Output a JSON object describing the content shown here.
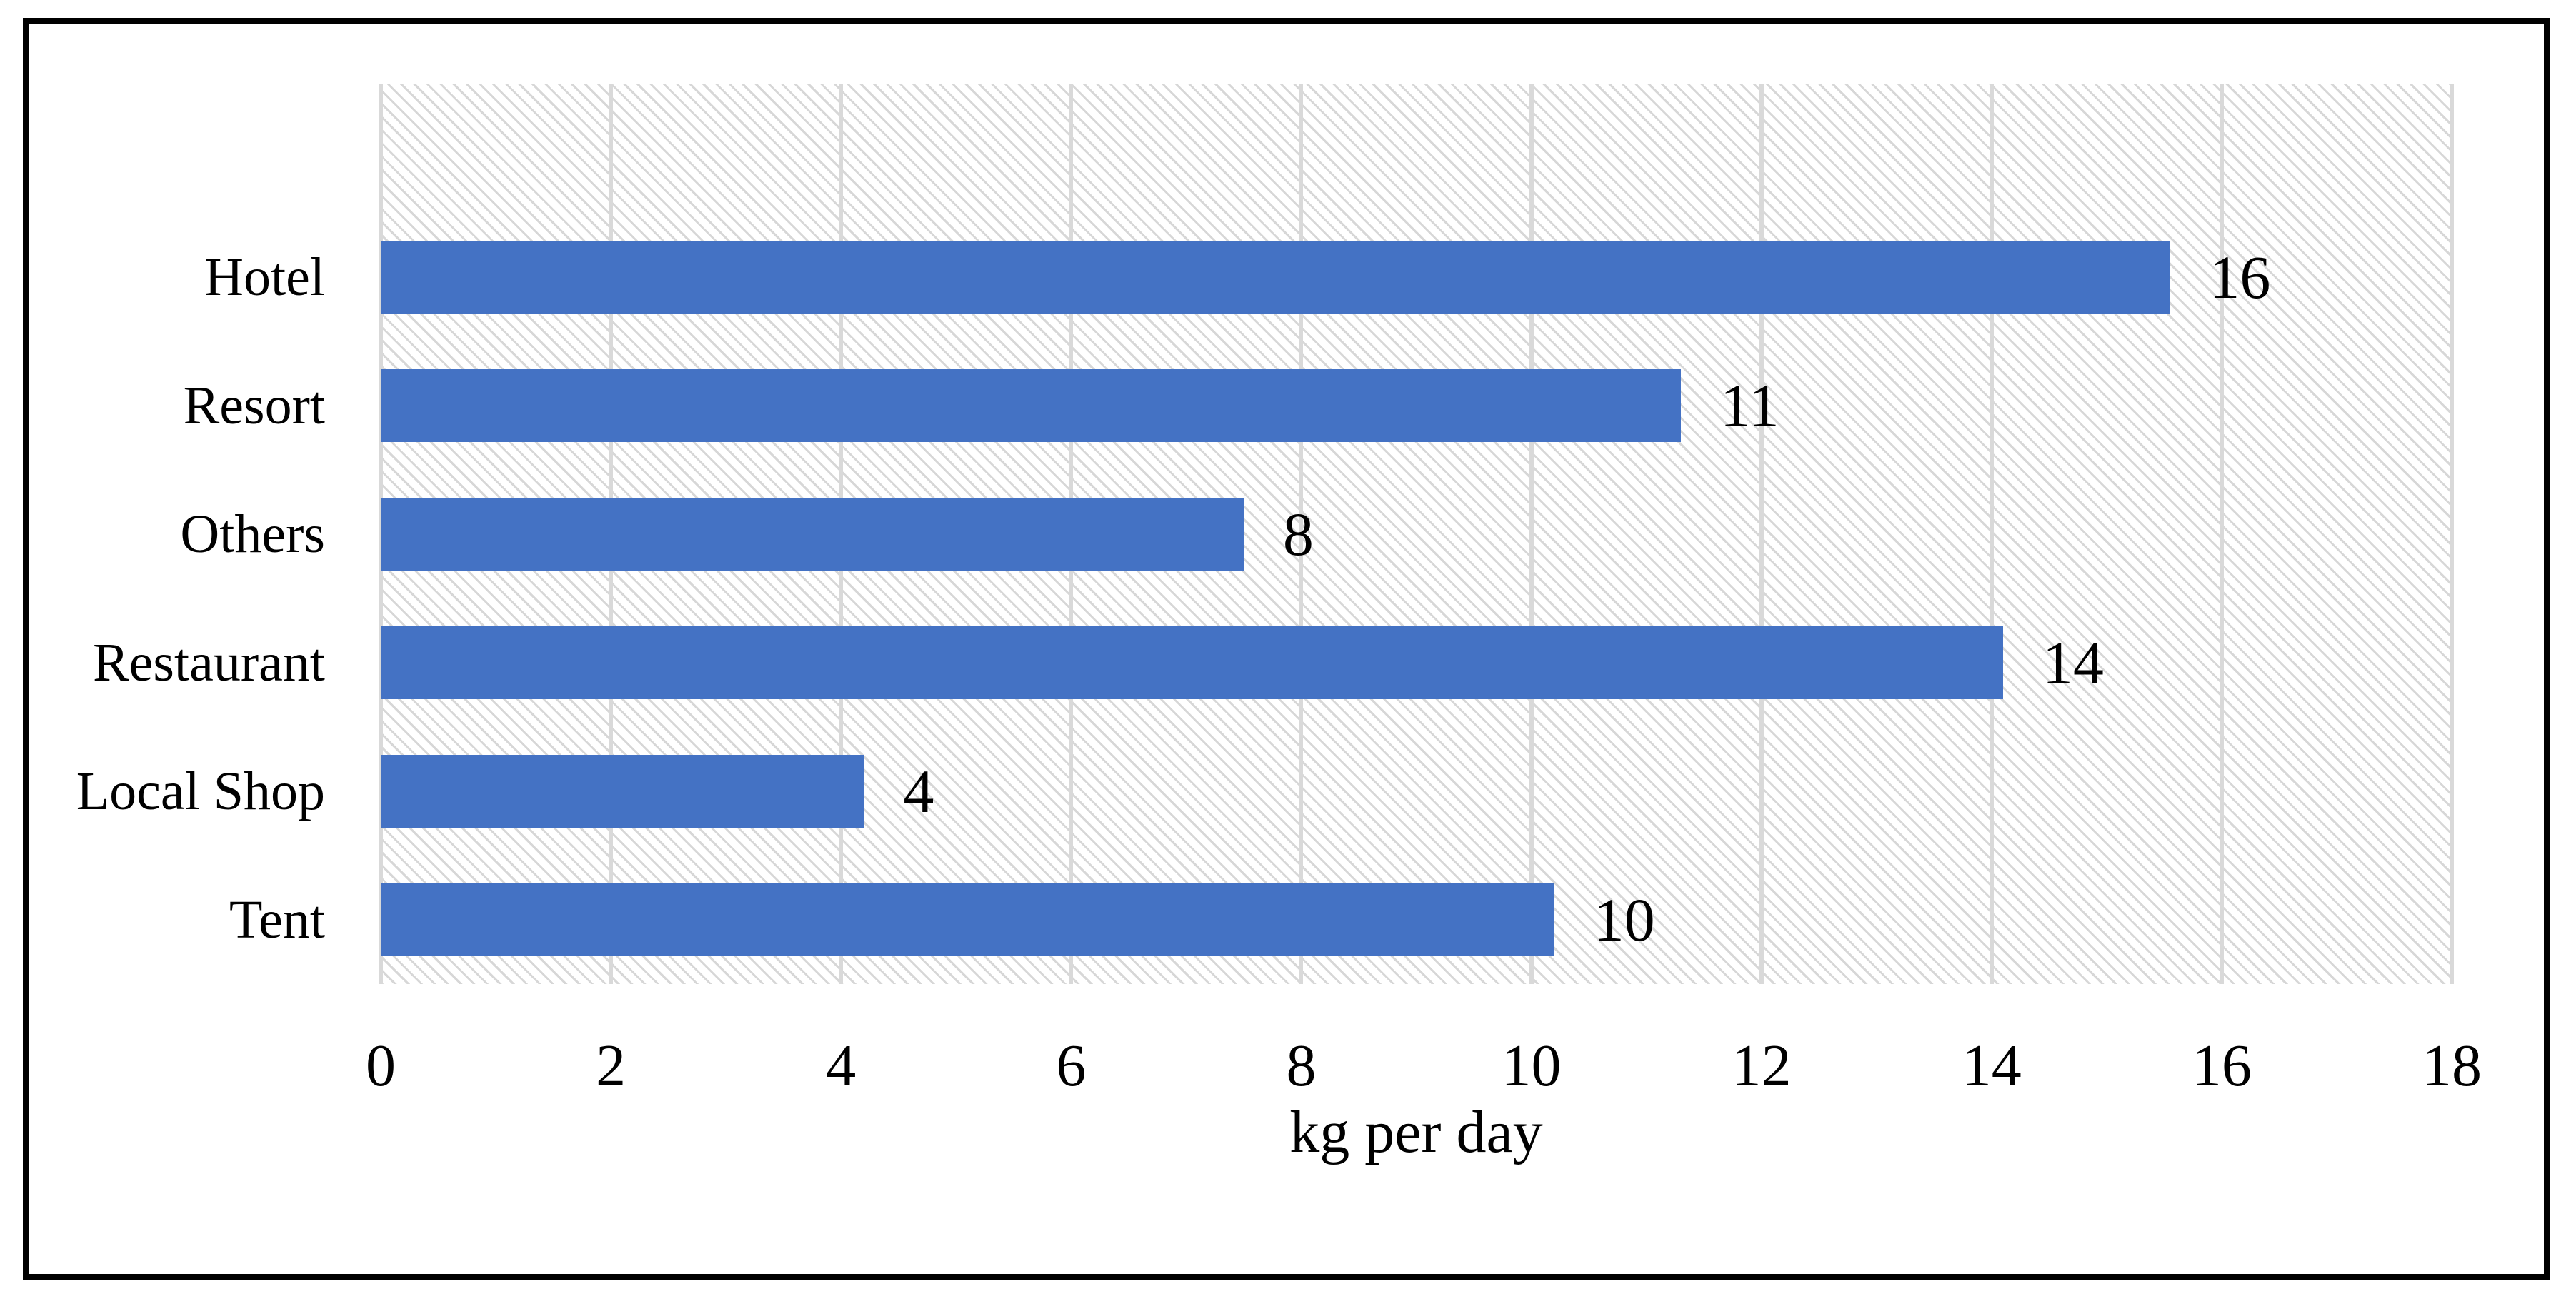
{
  "chart_data": {
    "type": "bar",
    "orientation": "horizontal",
    "title": "",
    "categories": [
      "Hotel",
      "Resort",
      "Others",
      "Restaurant",
      "Local Shop",
      "Tent"
    ],
    "values": [
      16,
      11,
      8,
      14,
      4,
      10
    ],
    "data_labels": [
      "16",
      "11",
      "8",
      "14",
      "4",
      "10"
    ],
    "bar_extents_units": [
      15.55,
      11.3,
      7.5,
      14.1,
      4.2,
      10.2
    ],
    "xlabel": "kg per day",
    "xlim": [
      0,
      18
    ],
    "xticks": [
      "0",
      "2",
      "4",
      "6",
      "8",
      "10",
      "12",
      "14",
      "16",
      "18"
    ],
    "grid": "vertical-major",
    "legend": "none",
    "plot_background": "diagonal-hatch",
    "colors": {
      "bar": "#4472C4",
      "gridline": "#D9D9D9",
      "hatch_line": "#D7D7D7",
      "frame_border": "#000000",
      "text": "#000000",
      "background": "#FFFFFF"
    }
  }
}
